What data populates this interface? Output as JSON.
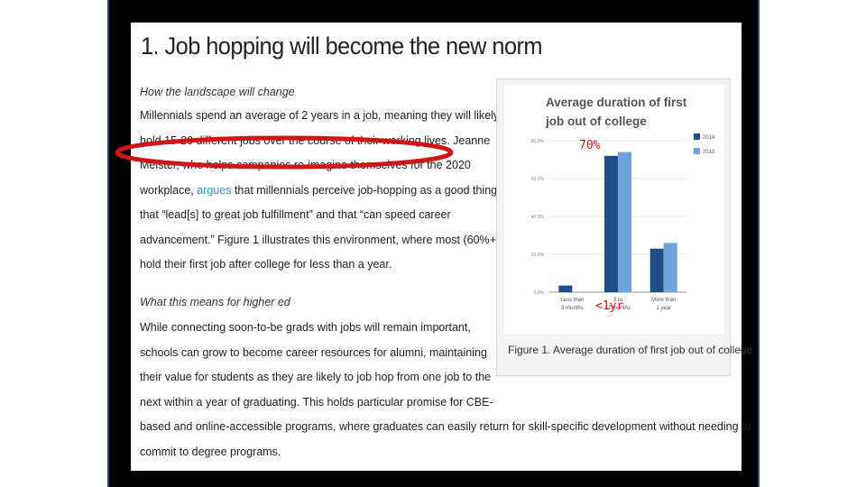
{
  "document": {
    "title": "1. Job hopping will become the new norm",
    "section1_heading": "How the landscape will change",
    "section1_lines": [
      "Millennials spend an average of 2 years in a job, meaning they will likely",
      "hold 15-20 different jobs over the course of their working lives. Jeanne",
      "Meister, who helps companies re-imagine themselves for the 2020",
      [
        "workplace, ",
        "argues",
        " that millennials perceive job-hopping as a good thing"
      ],
      "that “lead[s] to great job fulfillment” and that “can speed career",
      "advancement.” Figure 1 illustrates this environment, where most (60%+)",
      "hold their first job after college for less than a year."
    ],
    "section2_heading": "What this means for higher ed",
    "section2_lines": [
      "While connecting soon-to-be grads with jobs will remain important,",
      "schools can grow to become career resources for alumni, maintaining",
      "their value for students as they are likely to job hop from one job to the",
      "next within a year of graduating. This holds particular promise for CBE-",
      "based and online-accessible programs, where graduates can easily return for skill-specific development without needing to",
      "commit to degree programs."
    ],
    "figure_caption": "Figure 1. Average duration of first job out of college",
    "link_color": "#3a8fb7"
  },
  "annotations": {
    "label_top": "70%",
    "label_bottom": "<1yr",
    "color": "#d0141a"
  },
  "chart_data": {
    "type": "bar",
    "title": "Average duration of first job out of college",
    "categories": [
      "Less than 3 months",
      "3 to 12 months",
      "More than 1 year"
    ],
    "series": [
      {
        "name": "2014",
        "values": [
          3.5,
          72,
          23
        ],
        "color": "#1f4e8c"
      },
      {
        "name": "2013",
        "values": [
          0,
          74,
          26
        ],
        "color": "#6fa3db"
      }
    ],
    "yticks": [
      "0.0%",
      "20.0%",
      "40.0%",
      "60.0%",
      "80.0%"
    ],
    "ylim": [
      0,
      80
    ],
    "legend": "right",
    "grid": true
  }
}
